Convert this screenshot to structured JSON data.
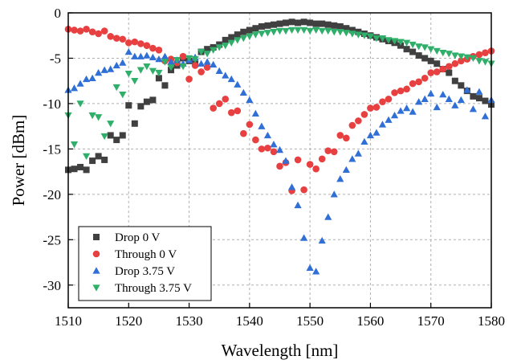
{
  "chart_data": {
    "type": "scatter",
    "xlabel": "Wavelength [nm]",
    "ylabel": "Power [dBm]",
    "xlim": [
      1510,
      1580
    ],
    "ylim": [
      -32.5,
      0
    ],
    "xticks": [
      1510,
      1520,
      1530,
      1540,
      1550,
      1560,
      1570,
      1580
    ],
    "yticks": [
      0,
      -5,
      -10,
      -15,
      -20,
      -25,
      -30
    ],
    "grid": true,
    "legend_position": "bottom-left",
    "series": [
      {
        "name": "Drop 0 V",
        "marker": "square",
        "color": "#404040",
        "points": [
          [
            1510,
            -17.3
          ],
          [
            1511,
            -17.2
          ],
          [
            1512,
            -17.0
          ],
          [
            1513,
            -17.3
          ],
          [
            1514,
            -16.3
          ],
          [
            1515,
            -15.8
          ],
          [
            1516,
            -16.2
          ],
          [
            1517,
            -13.5
          ],
          [
            1518,
            -14.0
          ],
          [
            1519,
            -13.5
          ],
          [
            1520,
            -10.2
          ],
          [
            1521,
            -12.2
          ],
          [
            1522,
            -10.3
          ],
          [
            1523,
            -9.8
          ],
          [
            1524,
            -9.6
          ],
          [
            1525,
            -7.2
          ],
          [
            1526,
            -8.0
          ],
          [
            1527,
            -6.3
          ],
          [
            1528,
            -5.8
          ],
          [
            1529,
            -5.0
          ],
          [
            1530,
            -5.3
          ],
          [
            1531,
            -5.6
          ],
          [
            1532,
            -4.3
          ],
          [
            1533,
            -4.0
          ],
          [
            1534,
            -3.8
          ],
          [
            1535,
            -3.5
          ],
          [
            1536,
            -3.0
          ],
          [
            1537,
            -2.7
          ],
          [
            1538,
            -2.4
          ],
          [
            1539,
            -2.1
          ],
          [
            1540,
            -1.9
          ],
          [
            1541,
            -1.7
          ],
          [
            1542,
            -1.5
          ],
          [
            1543,
            -1.4
          ],
          [
            1544,
            -1.3
          ],
          [
            1545,
            -1.2
          ],
          [
            1546,
            -1.1
          ],
          [
            1547,
            -1.0
          ],
          [
            1548,
            -1.1
          ],
          [
            1549,
            -1.0
          ],
          [
            1550,
            -1.1
          ],
          [
            1551,
            -1.2
          ],
          [
            1552,
            -1.2
          ],
          [
            1553,
            -1.3
          ],
          [
            1554,
            -1.4
          ],
          [
            1555,
            -1.5
          ],
          [
            1556,
            -1.7
          ],
          [
            1557,
            -1.9
          ],
          [
            1558,
            -2.1
          ],
          [
            1559,
            -2.3
          ],
          [
            1560,
            -2.5
          ],
          [
            1561,
            -2.7
          ],
          [
            1562,
            -2.9
          ],
          [
            1563,
            -3.1
          ],
          [
            1564,
            -3.3
          ],
          [
            1565,
            -3.6
          ],
          [
            1566,
            -4.0
          ],
          [
            1567,
            -4.3
          ],
          [
            1568,
            -4.7
          ],
          [
            1569,
            -5.0
          ],
          [
            1570,
            -5.3
          ],
          [
            1571,
            -5.6
          ],
          [
            1572,
            -6.2
          ],
          [
            1573,
            -6.6
          ],
          [
            1574,
            -7.5
          ],
          [
            1575,
            -8.0
          ],
          [
            1576,
            -8.6
          ],
          [
            1577,
            -9.2
          ],
          [
            1578,
            -9.4
          ],
          [
            1579,
            -9.7
          ],
          [
            1580,
            -10.1
          ]
        ]
      },
      {
        "name": "Through 0 V",
        "marker": "circle",
        "color": "#e84040",
        "points": [
          [
            1510,
            -1.8
          ],
          [
            1511,
            -1.9
          ],
          [
            1512,
            -2.0
          ],
          [
            1513,
            -1.8
          ],
          [
            1514,
            -2.1
          ],
          [
            1515,
            -2.3
          ],
          [
            1516,
            -2.0
          ],
          [
            1517,
            -2.6
          ],
          [
            1518,
            -2.8
          ],
          [
            1519,
            -2.9
          ],
          [
            1520,
            -3.3
          ],
          [
            1521,
            -3.2
          ],
          [
            1522,
            -3.4
          ],
          [
            1523,
            -3.6
          ],
          [
            1524,
            -3.9
          ],
          [
            1525,
            -4.1
          ],
          [
            1526,
            -5.3
          ],
          [
            1527,
            -5.1
          ],
          [
            1528,
            -5.5
          ],
          [
            1529,
            -4.8
          ],
          [
            1530,
            -7.3
          ],
          [
            1531,
            -5.8
          ],
          [
            1532,
            -6.5
          ],
          [
            1533,
            -6.0
          ],
          [
            1534,
            -10.5
          ],
          [
            1535,
            -10.0
          ],
          [
            1536,
            -9.5
          ],
          [
            1537,
            -11.0
          ],
          [
            1538,
            -10.8
          ],
          [
            1539,
            -13.3
          ],
          [
            1540,
            -12.3
          ],
          [
            1541,
            -14.0
          ],
          [
            1542,
            -15.0
          ],
          [
            1543,
            -14.9
          ],
          [
            1544,
            -15.3
          ],
          [
            1545,
            -16.9
          ],
          [
            1546,
            -16.5
          ],
          [
            1547,
            -19.6
          ],
          [
            1548,
            -16.2
          ],
          [
            1549,
            -19.5
          ],
          [
            1550,
            -16.7
          ],
          [
            1551,
            -17.2
          ],
          [
            1552,
            -16.1
          ],
          [
            1553,
            -15.2
          ],
          [
            1554,
            -15.3
          ],
          [
            1555,
            -13.5
          ],
          [
            1556,
            -13.8
          ],
          [
            1557,
            -12.4
          ],
          [
            1558,
            -11.9
          ],
          [
            1559,
            -11.2
          ],
          [
            1560,
            -10.5
          ],
          [
            1561,
            -10.4
          ],
          [
            1562,
            -9.8
          ],
          [
            1563,
            -9.5
          ],
          [
            1564,
            -8.8
          ],
          [
            1565,
            -8.6
          ],
          [
            1566,
            -8.4
          ],
          [
            1567,
            -7.8
          ],
          [
            1568,
            -7.6
          ],
          [
            1569,
            -7.2
          ],
          [
            1570,
            -6.6
          ],
          [
            1571,
            -6.5
          ],
          [
            1572,
            -6.2
          ],
          [
            1573,
            -5.9
          ],
          [
            1574,
            -5.6
          ],
          [
            1575,
            -5.3
          ],
          [
            1576,
            -5.1
          ],
          [
            1577,
            -4.8
          ],
          [
            1578,
            -4.6
          ],
          [
            1579,
            -4.4
          ],
          [
            1580,
            -4.2
          ]
        ]
      },
      {
        "name": "Drop 3.75 V",
        "marker": "triangle",
        "color": "#2f6fd6",
        "points": [
          [
            1510,
            -8.5
          ],
          [
            1511,
            -8.3
          ],
          [
            1512,
            -7.8
          ],
          [
            1513,
            -7.3
          ],
          [
            1514,
            -7.2
          ],
          [
            1515,
            -6.6
          ],
          [
            1516,
            -6.3
          ],
          [
            1517,
            -6.2
          ],
          [
            1518,
            -5.8
          ],
          [
            1519,
            -5.5
          ],
          [
            1520,
            -4.3
          ],
          [
            1521,
            -4.8
          ],
          [
            1522,
            -4.8
          ],
          [
            1523,
            -4.7
          ],
          [
            1524,
            -4.9
          ],
          [
            1525,
            -5.1
          ],
          [
            1526,
            -4.8
          ],
          [
            1527,
            -5.4
          ],
          [
            1528,
            -5.2
          ],
          [
            1529,
            -5.6
          ],
          [
            1530,
            -5.2
          ],
          [
            1531,
            -4.9
          ],
          [
            1532,
            -5.6
          ],
          [
            1533,
            -5.4
          ],
          [
            1534,
            -5.7
          ],
          [
            1535,
            -6.4
          ],
          [
            1536,
            -6.9
          ],
          [
            1537,
            -7.3
          ],
          [
            1538,
            -7.9
          ],
          [
            1539,
            -8.8
          ],
          [
            1540,
            -9.6
          ],
          [
            1541,
            -11.1
          ],
          [
            1542,
            -12.5
          ],
          [
            1543,
            -13.5
          ],
          [
            1544,
            -14.5
          ],
          [
            1545,
            -15.1
          ],
          [
            1546,
            -16.3
          ],
          [
            1547,
            -19.2
          ],
          [
            1548,
            -21.2
          ],
          [
            1549,
            -24.8
          ],
          [
            1550,
            -28.1
          ],
          [
            1551,
            -28.5
          ],
          [
            1552,
            -25.1
          ],
          [
            1553,
            -22.5
          ],
          [
            1554,
            -20.0
          ],
          [
            1555,
            -18.3
          ],
          [
            1556,
            -17.3
          ],
          [
            1557,
            -16.1
          ],
          [
            1558,
            -15.5
          ],
          [
            1559,
            -14.2
          ],
          [
            1560,
            -13.5
          ],
          [
            1561,
            -13.2
          ],
          [
            1562,
            -12.3
          ],
          [
            1563,
            -11.8
          ],
          [
            1564,
            -11.3
          ],
          [
            1565,
            -10.8
          ],
          [
            1566,
            -10.5
          ],
          [
            1567,
            -10.9
          ],
          [
            1568,
            -9.8
          ],
          [
            1569,
            -9.5
          ],
          [
            1570,
            -8.9
          ],
          [
            1571,
            -10.4
          ],
          [
            1572,
            -9.0
          ],
          [
            1573,
            -9.5
          ],
          [
            1574,
            -10.2
          ],
          [
            1575,
            -9.6
          ],
          [
            1576,
            -8.5
          ],
          [
            1577,
            -10.6
          ],
          [
            1578,
            -8.7
          ],
          [
            1579,
            -11.4
          ],
          [
            1580,
            -9.6
          ]
        ]
      },
      {
        "name": "Through 3.75 V",
        "marker": "triangle-down",
        "color": "#2faf6a",
        "points": [
          [
            1510,
            -11.3
          ],
          [
            1511,
            -14.5
          ],
          [
            1512,
            -10.0
          ],
          [
            1513,
            -15.8
          ],
          [
            1514,
            -11.3
          ],
          [
            1515,
            -11.5
          ],
          [
            1516,
            -13.6
          ],
          [
            1517,
            -12.2
          ],
          [
            1518,
            -8.2
          ],
          [
            1519,
            -9.0
          ],
          [
            1520,
            -6.7
          ],
          [
            1521,
            -7.5
          ],
          [
            1522,
            -6.3
          ],
          [
            1523,
            -5.9
          ],
          [
            1524,
            -6.4
          ],
          [
            1525,
            -6.6
          ],
          [
            1526,
            -5.4
          ],
          [
            1527,
            -6.0
          ],
          [
            1528,
            -5.2
          ],
          [
            1529,
            -5.9
          ],
          [
            1530,
            -5.0
          ],
          [
            1531,
            -5.1
          ],
          [
            1532,
            -4.3
          ],
          [
            1533,
            -4.5
          ],
          [
            1534,
            -4.1
          ],
          [
            1535,
            -3.8
          ],
          [
            1536,
            -3.6
          ],
          [
            1537,
            -3.3
          ],
          [
            1538,
            -3.0
          ],
          [
            1539,
            -2.8
          ],
          [
            1540,
            -2.6
          ],
          [
            1541,
            -2.4
          ],
          [
            1542,
            -2.3
          ],
          [
            1543,
            -2.2
          ],
          [
            1544,
            -2.1
          ],
          [
            1545,
            -2.0
          ],
          [
            1546,
            -2.0
          ],
          [
            1547,
            -1.9
          ],
          [
            1548,
            -1.9
          ],
          [
            1549,
            -1.9
          ],
          [
            1550,
            -2.0
          ],
          [
            1551,
            -1.9
          ],
          [
            1552,
            -2.0
          ],
          [
            1553,
            -2.0
          ],
          [
            1554,
            -2.1
          ],
          [
            1555,
            -2.1
          ],
          [
            1556,
            -2.2
          ],
          [
            1557,
            -2.3
          ],
          [
            1558,
            -2.4
          ],
          [
            1559,
            -2.5
          ],
          [
            1560,
            -2.6
          ],
          [
            1561,
            -2.8
          ],
          [
            1562,
            -2.8
          ],
          [
            1563,
            -3.0
          ],
          [
            1564,
            -3.1
          ],
          [
            1565,
            -3.2
          ],
          [
            1566,
            -3.3
          ],
          [
            1567,
            -3.5
          ],
          [
            1568,
            -3.7
          ],
          [
            1569,
            -3.8
          ],
          [
            1570,
            -4.0
          ],
          [
            1571,
            -4.2
          ],
          [
            1572,
            -4.4
          ],
          [
            1573,
            -4.5
          ],
          [
            1574,
            -4.7
          ],
          [
            1575,
            -4.8
          ],
          [
            1576,
            -4.9
          ],
          [
            1577,
            -5.0
          ],
          [
            1578,
            -5.3
          ],
          [
            1579,
            -5.4
          ],
          [
            1580,
            -5.6
          ]
        ]
      }
    ]
  }
}
